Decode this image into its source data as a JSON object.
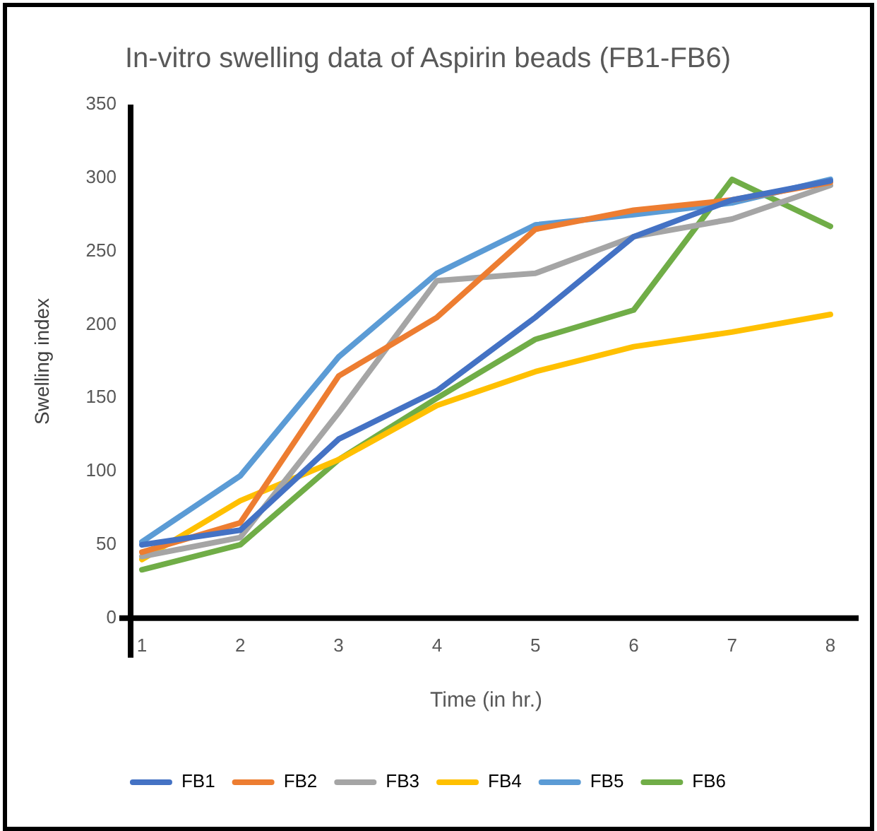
{
  "chart_data": {
    "type": "line",
    "title": "In-vitro swelling data of Aspirin beads (FB1-FB6)",
    "xlabel": "Time (in hr.)",
    "ylabel": "Swelling index",
    "categories": [
      "1",
      "2",
      "3",
      "4",
      "5",
      "6",
      "7",
      "8"
    ],
    "series": [
      {
        "name": "FB1",
        "color": "#4472c4",
        "values": [
          50,
          60,
          122,
          155,
          205,
          260,
          285,
          298
        ]
      },
      {
        "name": "FB2",
        "color": "#ed7d31",
        "values": [
          45,
          65,
          165,
          205,
          265,
          278,
          285,
          297
        ]
      },
      {
        "name": "FB3",
        "color": "#a5a5a5",
        "values": [
          42,
          55,
          140,
          230,
          235,
          260,
          272,
          295
        ]
      },
      {
        "name": "FB4",
        "color": "#ffc000",
        "values": [
          40,
          80,
          108,
          145,
          168,
          185,
          195,
          207
        ]
      },
      {
        "name": "FB5",
        "color": "#5b9bd5",
        "values": [
          52,
          97,
          178,
          235,
          268,
          275,
          283,
          299
        ]
      },
      {
        "name": "FB6",
        "color": "#70ad47",
        "values": [
          33,
          50,
          108,
          150,
          190,
          210,
          299,
          267
        ]
      }
    ],
    "ylim": [
      0,
      350
    ],
    "yticks": [
      0,
      50,
      100,
      150,
      200,
      250,
      300,
      350
    ],
    "grid": false,
    "legend": "bottom",
    "marker": "none",
    "line_style": "solid"
  }
}
